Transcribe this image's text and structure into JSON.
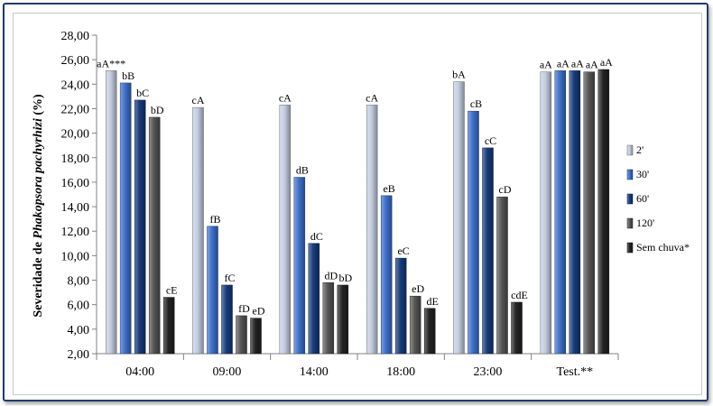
{
  "chart_data": {
    "type": "bar",
    "ylabel_prefix": "Severidade de ",
    "ylabel_italic": "Phakopsora pachyrhizi",
    "ylabel_suffix": " (%)",
    "ylim": [
      2,
      28
    ],
    "yticks": [
      "2,00",
      "4,00",
      "6,00",
      "8,00",
      "10,00",
      "12,00",
      "14,00",
      "16,00",
      "18,00",
      "20,00",
      "22,00",
      "24,00",
      "26,00",
      "28,00"
    ],
    "categories": [
      "04:00",
      "09:00",
      "14:00",
      "18:00",
      "23:00",
      "Test.**"
    ],
    "series": [
      {
        "name": "2'",
        "color": "#c3cde0",
        "values": [
          25.1,
          22.1,
          22.3,
          22.3,
          24.2,
          25.0
        ],
        "labels": [
          "aA***",
          "cA",
          "cA",
          "cA",
          "bA",
          "aA"
        ]
      },
      {
        "name": "30'",
        "color": "#3e6fc9",
        "values": [
          24.1,
          12.4,
          16.4,
          14.9,
          21.8,
          25.1
        ],
        "labels": [
          "bB",
          "fB",
          "dB",
          "eB",
          "cB",
          "aA"
        ]
      },
      {
        "name": "60'",
        "color": "#173b7a",
        "values": [
          22.7,
          7.6,
          11.0,
          9.8,
          18.8,
          25.1
        ],
        "labels": [
          "bC",
          "fC",
          "dC",
          "eC",
          "cC",
          "aA"
        ]
      },
      {
        "name": "120'",
        "color": "#555555",
        "values": [
          21.3,
          5.1,
          7.8,
          6.7,
          14.8,
          25.0
        ],
        "labels": [
          "bD",
          "fD",
          "dD",
          "eD",
          "cD",
          "aA"
        ]
      },
      {
        "name": "Sem chuva*",
        "color": "#232323",
        "values": [
          6.6,
          4.9,
          7.6,
          5.7,
          6.2,
          25.2
        ],
        "labels": [
          "cE",
          "eD",
          "bD",
          "dE",
          "cdE",
          "aA"
        ]
      }
    ],
    "grid": false,
    "legend_position": "right"
  }
}
